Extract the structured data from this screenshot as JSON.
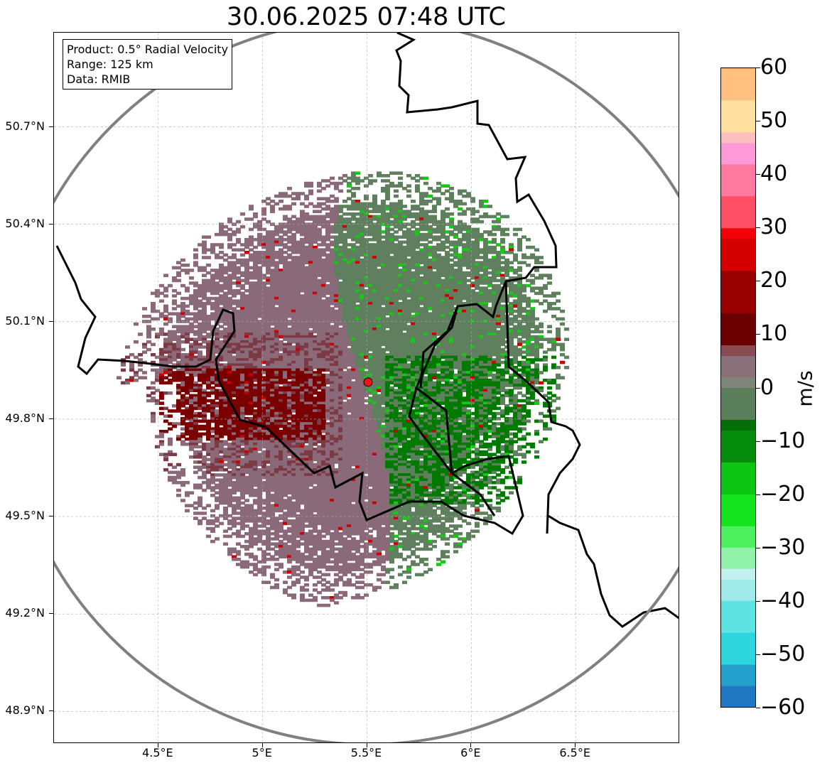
{
  "title": "30.06.2025 07:48 UTC",
  "info_box": {
    "product": "Product: 0.5° Radial Velocity",
    "range": "Range: 125 km",
    "data": "Data: RMIB"
  },
  "map": {
    "lon_range": [
      4.0,
      7.0
    ],
    "lat_range": [
      48.8,
      50.99
    ],
    "radar_site": {
      "lon": 5.505,
      "lat": 49.914
    },
    "range_ring_km": 125,
    "colors": {
      "radar_site_fill": "#e8141e",
      "range_ring": "#808080",
      "border": "#000000",
      "grid": "#aaaaaa"
    }
  },
  "axes": {
    "lat_ticks": [
      "50.7°N",
      "50.4°N",
      "50.1°N",
      "49.8°N",
      "49.5°N",
      "49.2°N",
      "48.9°N"
    ],
    "lat_values": [
      50.7,
      50.4,
      50.1,
      49.8,
      49.5,
      49.2,
      48.9
    ],
    "lon_ticks": [
      "4.5°E",
      "5°E",
      "5.5°E",
      "6°E",
      "6.5°E"
    ],
    "lon_values": [
      4.5,
      5.0,
      5.5,
      6.0,
      6.5
    ]
  },
  "colorbar": {
    "unit": "m/s",
    "min": -60,
    "max": 60,
    "ticks": [
      "60",
      "50",
      "40",
      "30",
      "20",
      "10",
      "0",
      "−10",
      "−20",
      "−30",
      "−40",
      "−50",
      "−60"
    ],
    "tick_values": [
      60,
      50,
      40,
      30,
      20,
      10,
      0,
      -10,
      -20,
      -30,
      -40,
      -50,
      -60
    ],
    "stops": [
      {
        "v": -60,
        "c": "#1f78c1"
      },
      {
        "v": -56,
        "c": "#23a0cc"
      },
      {
        "v": -52,
        "c": "#2cd6dc"
      },
      {
        "v": -46,
        "c": "#5fe2e2"
      },
      {
        "v": -40,
        "c": "#a0eaea"
      },
      {
        "v": -36,
        "c": "#c4f0f0"
      },
      {
        "v": -34,
        "c": "#8ff2a8"
      },
      {
        "v": -30,
        "c": "#4cf05f"
      },
      {
        "v": -26,
        "c": "#14e41e"
      },
      {
        "v": -20,
        "c": "#0cc412"
      },
      {
        "v": -14,
        "c": "#058c0a"
      },
      {
        "v": -8,
        "c": "#036f06"
      },
      {
        "v": -6,
        "c": "#5b7f5b"
      },
      {
        "v": 0,
        "c": "#7f857a"
      },
      {
        "v": 2,
        "c": "#8a7078"
      },
      {
        "v": 6,
        "c": "#8a4c52"
      },
      {
        "v": 8,
        "c": "#6a0000"
      },
      {
        "v": 14,
        "c": "#980000"
      },
      {
        "v": 22,
        "c": "#d40000"
      },
      {
        "v": 28,
        "c": "#f40008"
      },
      {
        "v": 30,
        "c": "#ff4f66"
      },
      {
        "v": 36,
        "c": "#ff78a0"
      },
      {
        "v": 42,
        "c": "#ff9ad8"
      },
      {
        "v": 46,
        "c": "#ffbebe"
      },
      {
        "v": 48,
        "c": "#ffe0a0"
      },
      {
        "v": 54,
        "c": "#ffc080"
      },
      {
        "v": 60,
        "c": "#ff9a50"
      }
    ]
  },
  "velocity_field": {
    "description_colors": {
      "inbound_strong": "#007a00",
      "inbound_weak": "#5f7f5f",
      "outbound_weak": "#8a6a78",
      "outbound_strong": "#7a0000"
    }
  }
}
